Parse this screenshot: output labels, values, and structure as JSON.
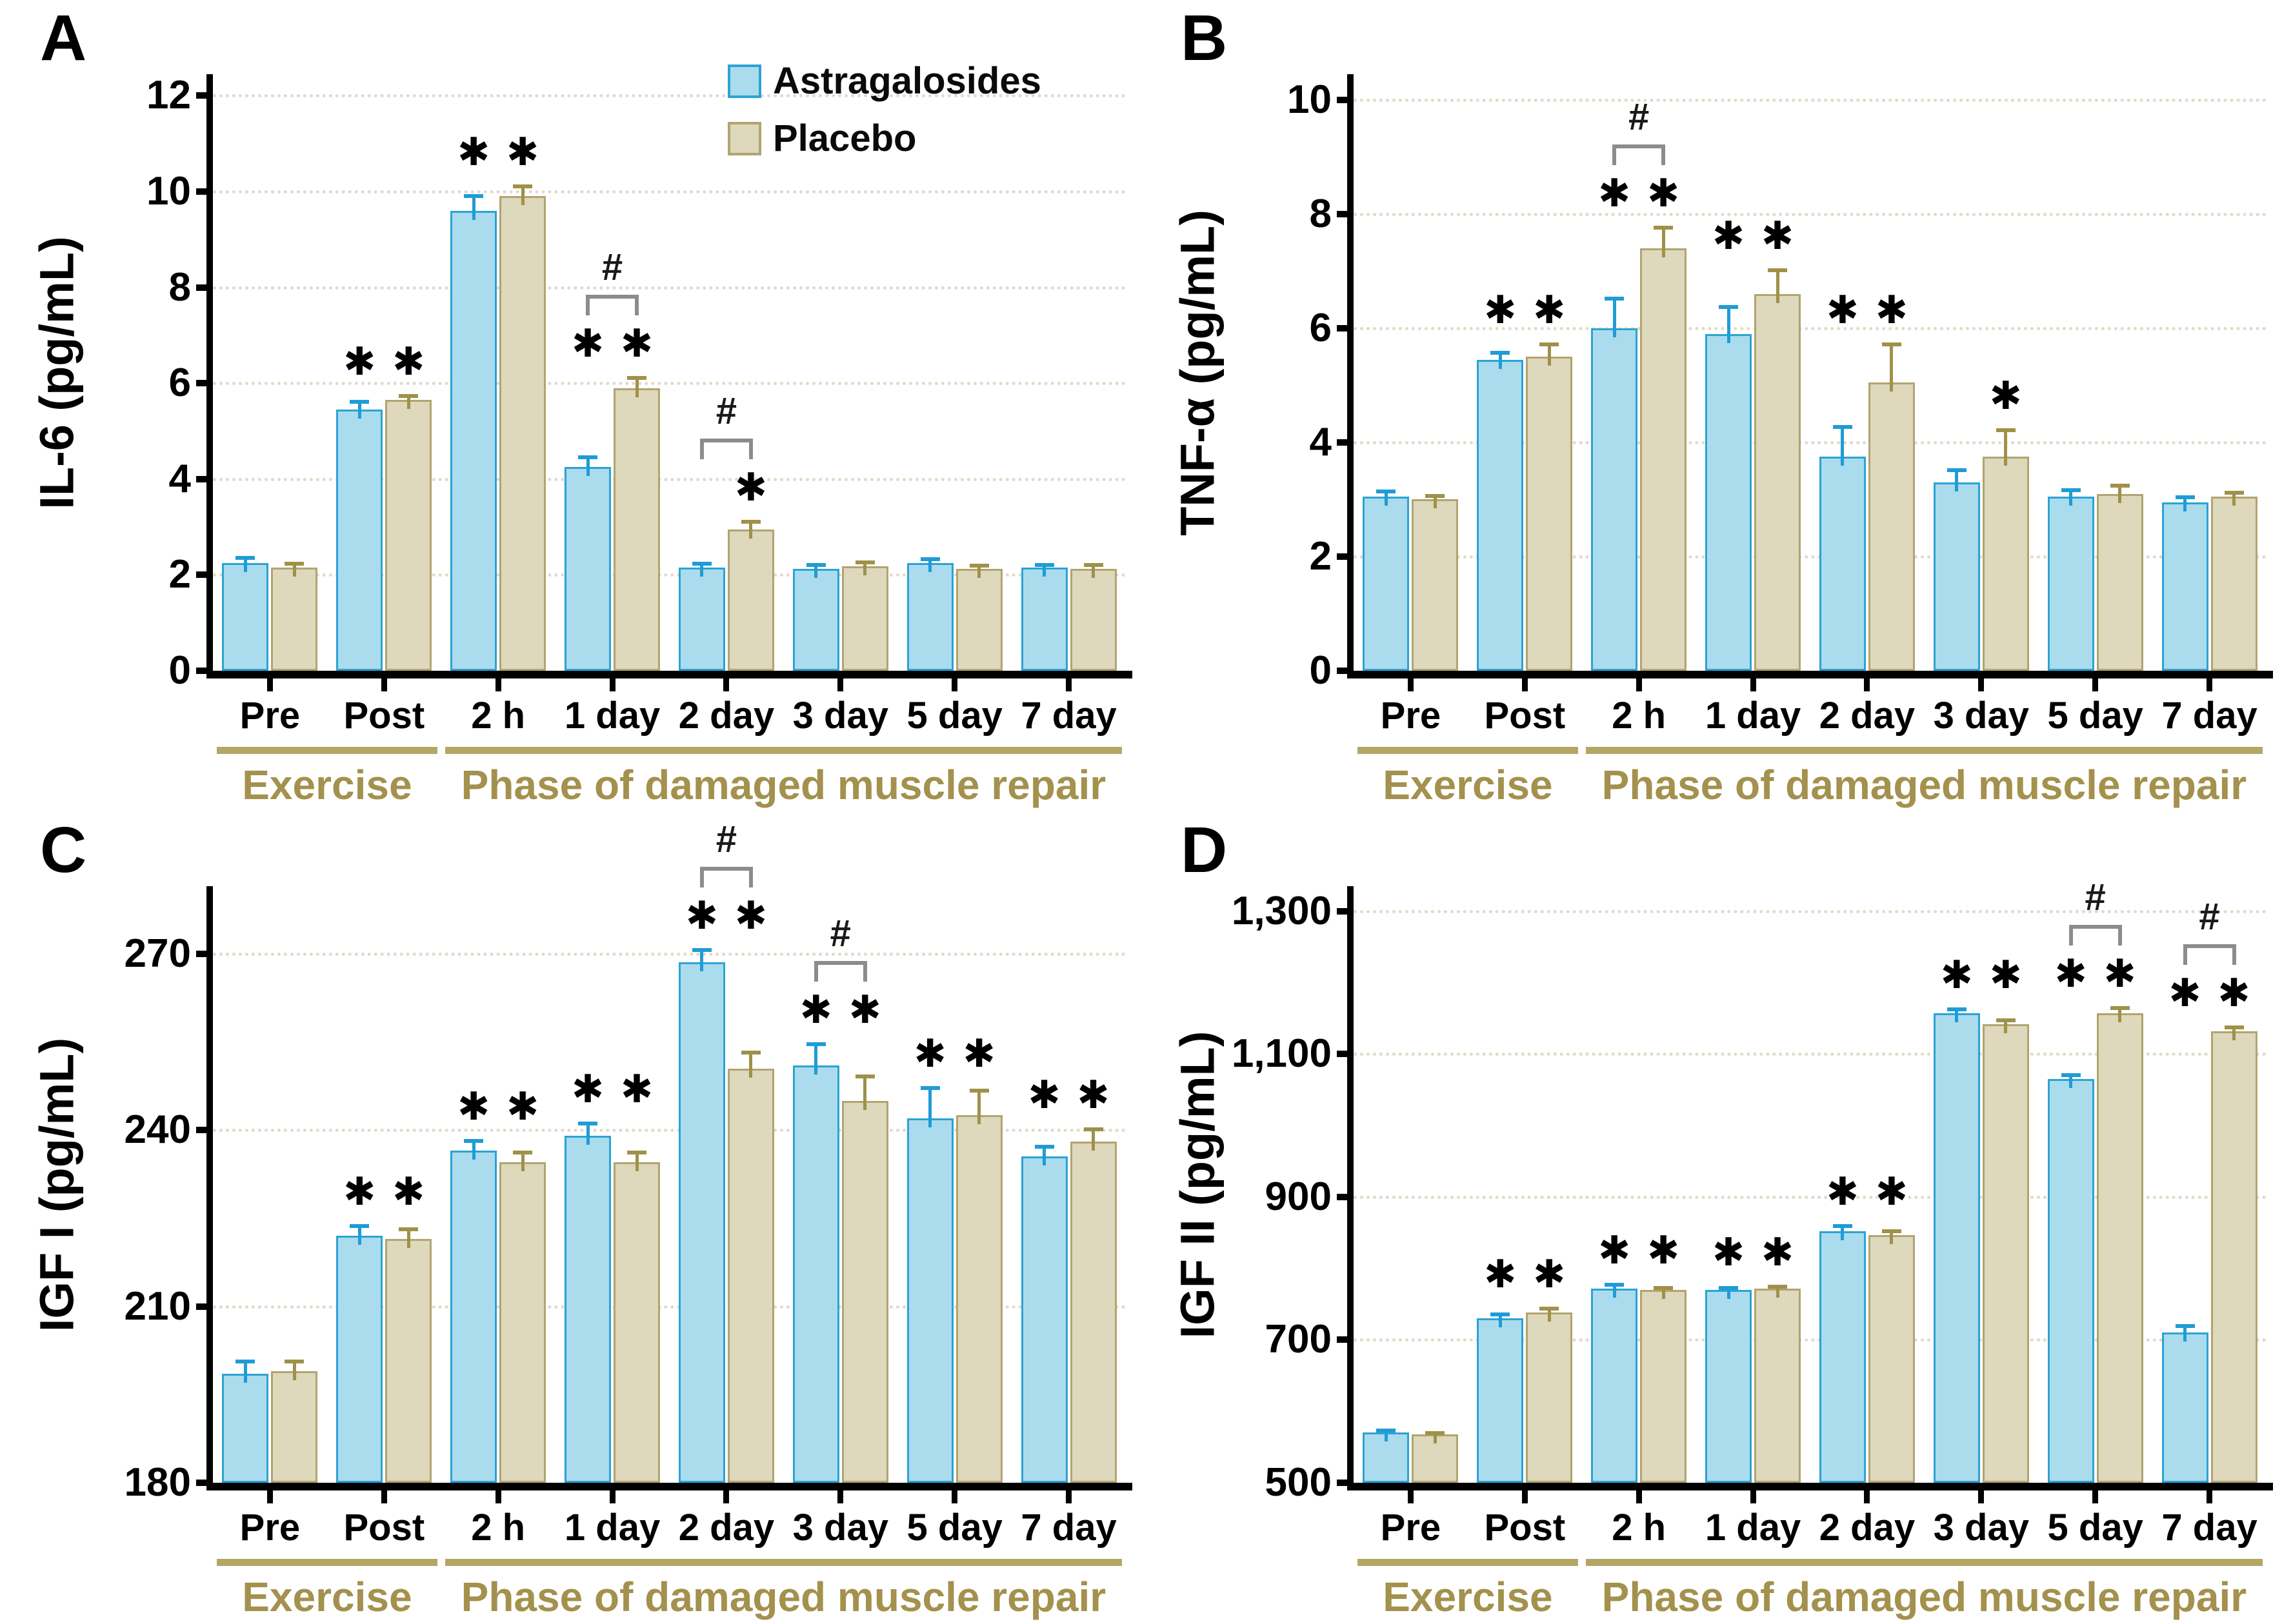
{
  "figure": {
    "legend": {
      "items": [
        {
          "label": "Astragalosides",
          "series": "astragalosides"
        },
        {
          "label": "Placebo",
          "series": "placebo"
        }
      ]
    },
    "group_axis": {
      "groups": [
        {
          "label": "Exercise",
          "span": [
            0,
            1
          ]
        },
        {
          "label": "Phase of damaged muscle repair",
          "span": [
            2,
            7
          ]
        }
      ]
    },
    "annotations": {
      "significance_symbol": "✱",
      "between_group_symbol": "#"
    },
    "colors": {
      "astragalosides_fill": "#abdcee",
      "astragalosides_border": "#2ba3d4",
      "astragalosides_error": "#1f9cd6",
      "placebo_fill": "#ded8bc",
      "placebo_border": "#b1a470",
      "placebo_error": "#9f9148",
      "olive_text": "#a3914d",
      "underline": "#b4a766",
      "grid": "#e3dac8",
      "bracket": "#8c8c8c",
      "axis": "#000000"
    },
    "chart_data": [
      {
        "id": "A",
        "type": "bar",
        "ylabel": "IL-6 (pg/mL)",
        "ylim": [
          0,
          12.45
        ],
        "yticks": [
          0,
          2,
          4,
          6,
          8,
          10,
          12
        ],
        "ytick_labels": [
          "0",
          "2",
          "4",
          "6",
          "8",
          "10",
          "12"
        ],
        "categories": [
          "Pre",
          "Post",
          "2 h",
          "1 day",
          "2 day",
          "3 day",
          "5 day",
          "7 day"
        ],
        "series": [
          {
            "name": "Astragalosides",
            "values": [
              2.25,
              5.45,
              9.6,
              4.25,
              2.15,
              2.12,
              2.25,
              2.15
            ],
            "errors": [
              0.15,
              0.2,
              0.35,
              0.25,
              0.12,
              0.13,
              0.12,
              0.1
            ],
            "sig": [
              false,
              true,
              true,
              true,
              false,
              false,
              false,
              false
            ]
          },
          {
            "name": "Placebo",
            "values": [
              2.15,
              5.65,
              9.9,
              5.9,
              2.95,
              2.18,
              2.12,
              2.12
            ],
            "errors": [
              0.12,
              0.12,
              0.25,
              0.25,
              0.2,
              0.12,
              0.12,
              0.13
            ],
            "sig": [
              false,
              true,
              true,
              true,
              true,
              false,
              false,
              false
            ]
          }
        ],
        "hash_between_groups": [
          false,
          false,
          false,
          true,
          true,
          false,
          false,
          false
        ],
        "has_legend": true
      },
      {
        "id": "B",
        "type": "bar",
        "ylabel": "TNF-α (pg/mL)",
        "ylim": [
          0,
          10.45
        ],
        "yticks": [
          0,
          2,
          4,
          6,
          8,
          10
        ],
        "ytick_labels": [
          "0",
          "2",
          "4",
          "6",
          "8",
          "10"
        ],
        "categories": [
          "Pre",
          "Post",
          "2 h",
          "1 day",
          "2 day",
          "3 day",
          "5 day",
          "7 day"
        ],
        "series": [
          {
            "name": "Astragalosides",
            "values": [
              3.05,
              5.45,
              6.0,
              5.9,
              3.75,
              3.3,
              3.05,
              2.95
            ],
            "errors": [
              0.12,
              0.15,
              0.55,
              0.5,
              0.55,
              0.25,
              0.15,
              0.12
            ],
            "sig": [
              false,
              true,
              true,
              true,
              true,
              false,
              false,
              false
            ]
          },
          {
            "name": "Placebo",
            "values": [
              3.0,
              5.5,
              7.4,
              6.6,
              5.05,
              3.75,
              3.1,
              3.05
            ],
            "errors": [
              0.1,
              0.25,
              0.4,
              0.45,
              0.7,
              0.5,
              0.18,
              0.1
            ],
            "sig": [
              false,
              true,
              true,
              true,
              true,
              true,
              false,
              false
            ]
          }
        ],
        "hash_between_groups": [
          false,
          false,
          true,
          false,
          false,
          false,
          false,
          false
        ],
        "has_legend": false
      },
      {
        "id": "C",
        "type": "bar",
        "ylabel": "IGF I (pg/mL)",
        "ylim": [
          180,
          281.5
        ],
        "yticks": [
          180,
          210,
          240,
          270
        ],
        "ytick_labels": [
          "180",
          "210",
          "240",
          "270"
        ],
        "categories": [
          "Pre",
          "Post",
          "2 h",
          "1 day",
          "2 day",
          "3 day",
          "5 day",
          "7 day"
        ],
        "series": [
          {
            "name": "Astragalosides",
            "values": [
              198.5,
              222,
              236.5,
              239,
              268.5,
              251,
              242,
              235.5
            ],
            "errors": [
              2.5,
              2,
              2,
              2.5,
              2.5,
              4,
              5.5,
              2
            ],
            "sig": [
              false,
              true,
              true,
              true,
              true,
              true,
              true,
              true
            ]
          },
          {
            "name": "Placebo",
            "values": [
              199,
              221.5,
              234.5,
              234.5,
              250.5,
              245,
              242.5,
              238
            ],
            "errors": [
              2,
              2,
              2,
              2,
              3,
              4.5,
              4.5,
              2.5
            ],
            "sig": [
              false,
              true,
              true,
              true,
              true,
              true,
              true,
              true
            ]
          }
        ],
        "hash_between_groups": [
          false,
          false,
          false,
          false,
          true,
          true,
          false,
          false
        ],
        "has_legend": false
      },
      {
        "id": "D",
        "type": "bar",
        "ylabel": "IGF II (pg/mL)",
        "ylim": [
          500,
          1335
        ],
        "yticks": [
          500,
          700,
          900,
          1100,
          1300
        ],
        "ytick_labels": [
          "500",
          "700",
          "900",
          "1,100",
          "1,300"
        ],
        "categories": [
          "Pre",
          "Post",
          "2 h",
          "1 day",
          "2 day",
          "3 day",
          "5 day",
          "7 day"
        ],
        "series": [
          {
            "name": "Astragalosides",
            "values": [
              570,
              730,
              772,
              770,
              852,
              1157,
              1065,
              710
            ],
            "errors": [
              6,
              8,
              8,
              5,
              10,
              8,
              8,
              12
            ],
            "sig": [
              false,
              true,
              true,
              true,
              true,
              true,
              true,
              true
            ]
          },
          {
            "name": "Placebo",
            "values": [
              568,
              738,
              770,
              772,
              847,
              1142,
              1157,
              1132
            ],
            "errors": [
              4,
              8,
              5,
              5,
              8,
              8,
              10,
              8
            ],
            "sig": [
              false,
              true,
              true,
              true,
              true,
              true,
              true,
              true
            ]
          }
        ],
        "hash_between_groups": [
          false,
          false,
          false,
          false,
          false,
          false,
          true,
          true
        ],
        "has_legend": false
      }
    ]
  }
}
